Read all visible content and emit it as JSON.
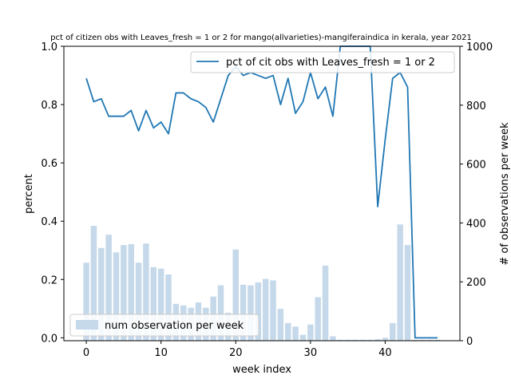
{
  "chart_data": {
    "type": "bar+line",
    "title": "pct of citizen obs with Leaves_fresh = 1 or 2 for mango(allvarieties)-mangiferaindica in kerala, year 2021",
    "xlabel": "week index",
    "ylabel_left": "percent",
    "ylabel_right": "# of observations per week",
    "xlim": [
      -3,
      50
    ],
    "ylim_left": [
      -0.01,
      1.0
    ],
    "ylim_right": [
      0,
      1000
    ],
    "x_ticks": [
      0,
      10,
      20,
      30,
      40
    ],
    "y_left_ticks": [
      0.0,
      0.2,
      0.4,
      0.6,
      0.8,
      1.0
    ],
    "y_right_ticks": [
      0,
      200,
      400,
      600,
      800,
      1000
    ],
    "legend_line": "pct of cit obs with Leaves_fresh = 1 or 2",
    "legend_bars": "num observation per week",
    "line_color": "#1f77b4",
    "bar_color": "#c5d9ea",
    "line_series": {
      "name": "pct of cit obs with Leaves_fresh = 1 or 2",
      "x": [
        0,
        1,
        2,
        3,
        4,
        5,
        6,
        7,
        8,
        9,
        10,
        11,
        12,
        13,
        14,
        15,
        16,
        17,
        18,
        19,
        20,
        21,
        22,
        23,
        24,
        25,
        26,
        27,
        28,
        29,
        30,
        31,
        32,
        33,
        34,
        35,
        36,
        37,
        38,
        39,
        40,
        41,
        42,
        43,
        44,
        45,
        46,
        47
      ],
      "y": [
        0.89,
        0.81,
        0.82,
        0.76,
        0.76,
        0.76,
        0.78,
        0.71,
        0.78,
        0.72,
        0.74,
        0.7,
        0.84,
        0.84,
        0.82,
        0.81,
        0.79,
        0.74,
        0.82,
        0.9,
        0.93,
        0.9,
        0.91,
        0.9,
        0.89,
        0.9,
        0.8,
        0.89,
        0.77,
        0.81,
        0.91,
        0.82,
        0.86,
        0.76,
        1.0,
        1.0,
        1.0,
        1.0,
        1.0,
        0.45,
        0.68,
        0.89,
        0.91,
        0.86,
        0.0,
        0.0,
        0.0,
        0.0
      ]
    },
    "bar_series": {
      "name": "num observation per week",
      "x": [
        0,
        1,
        2,
        3,
        4,
        5,
        6,
        7,
        8,
        9,
        10,
        11,
        12,
        13,
        14,
        15,
        16,
        17,
        18,
        19,
        20,
        21,
        22,
        23,
        24,
        25,
        26,
        27,
        28,
        29,
        30,
        31,
        32,
        33,
        34,
        35,
        36,
        37,
        38,
        39,
        40,
        41,
        42,
        43,
        44,
        45,
        46,
        47
      ],
      "values": [
        265,
        390,
        315,
        360,
        300,
        325,
        328,
        265,
        330,
        250,
        245,
        225,
        125,
        120,
        112,
        130,
        112,
        150,
        188,
        95,
        310,
        190,
        188,
        198,
        210,
        205,
        108,
        60,
        48,
        20,
        55,
        148,
        255,
        15,
        3,
        3,
        3,
        3,
        3,
        5,
        10,
        60,
        395,
        325,
        3,
        3,
        3,
        3
      ]
    }
  }
}
